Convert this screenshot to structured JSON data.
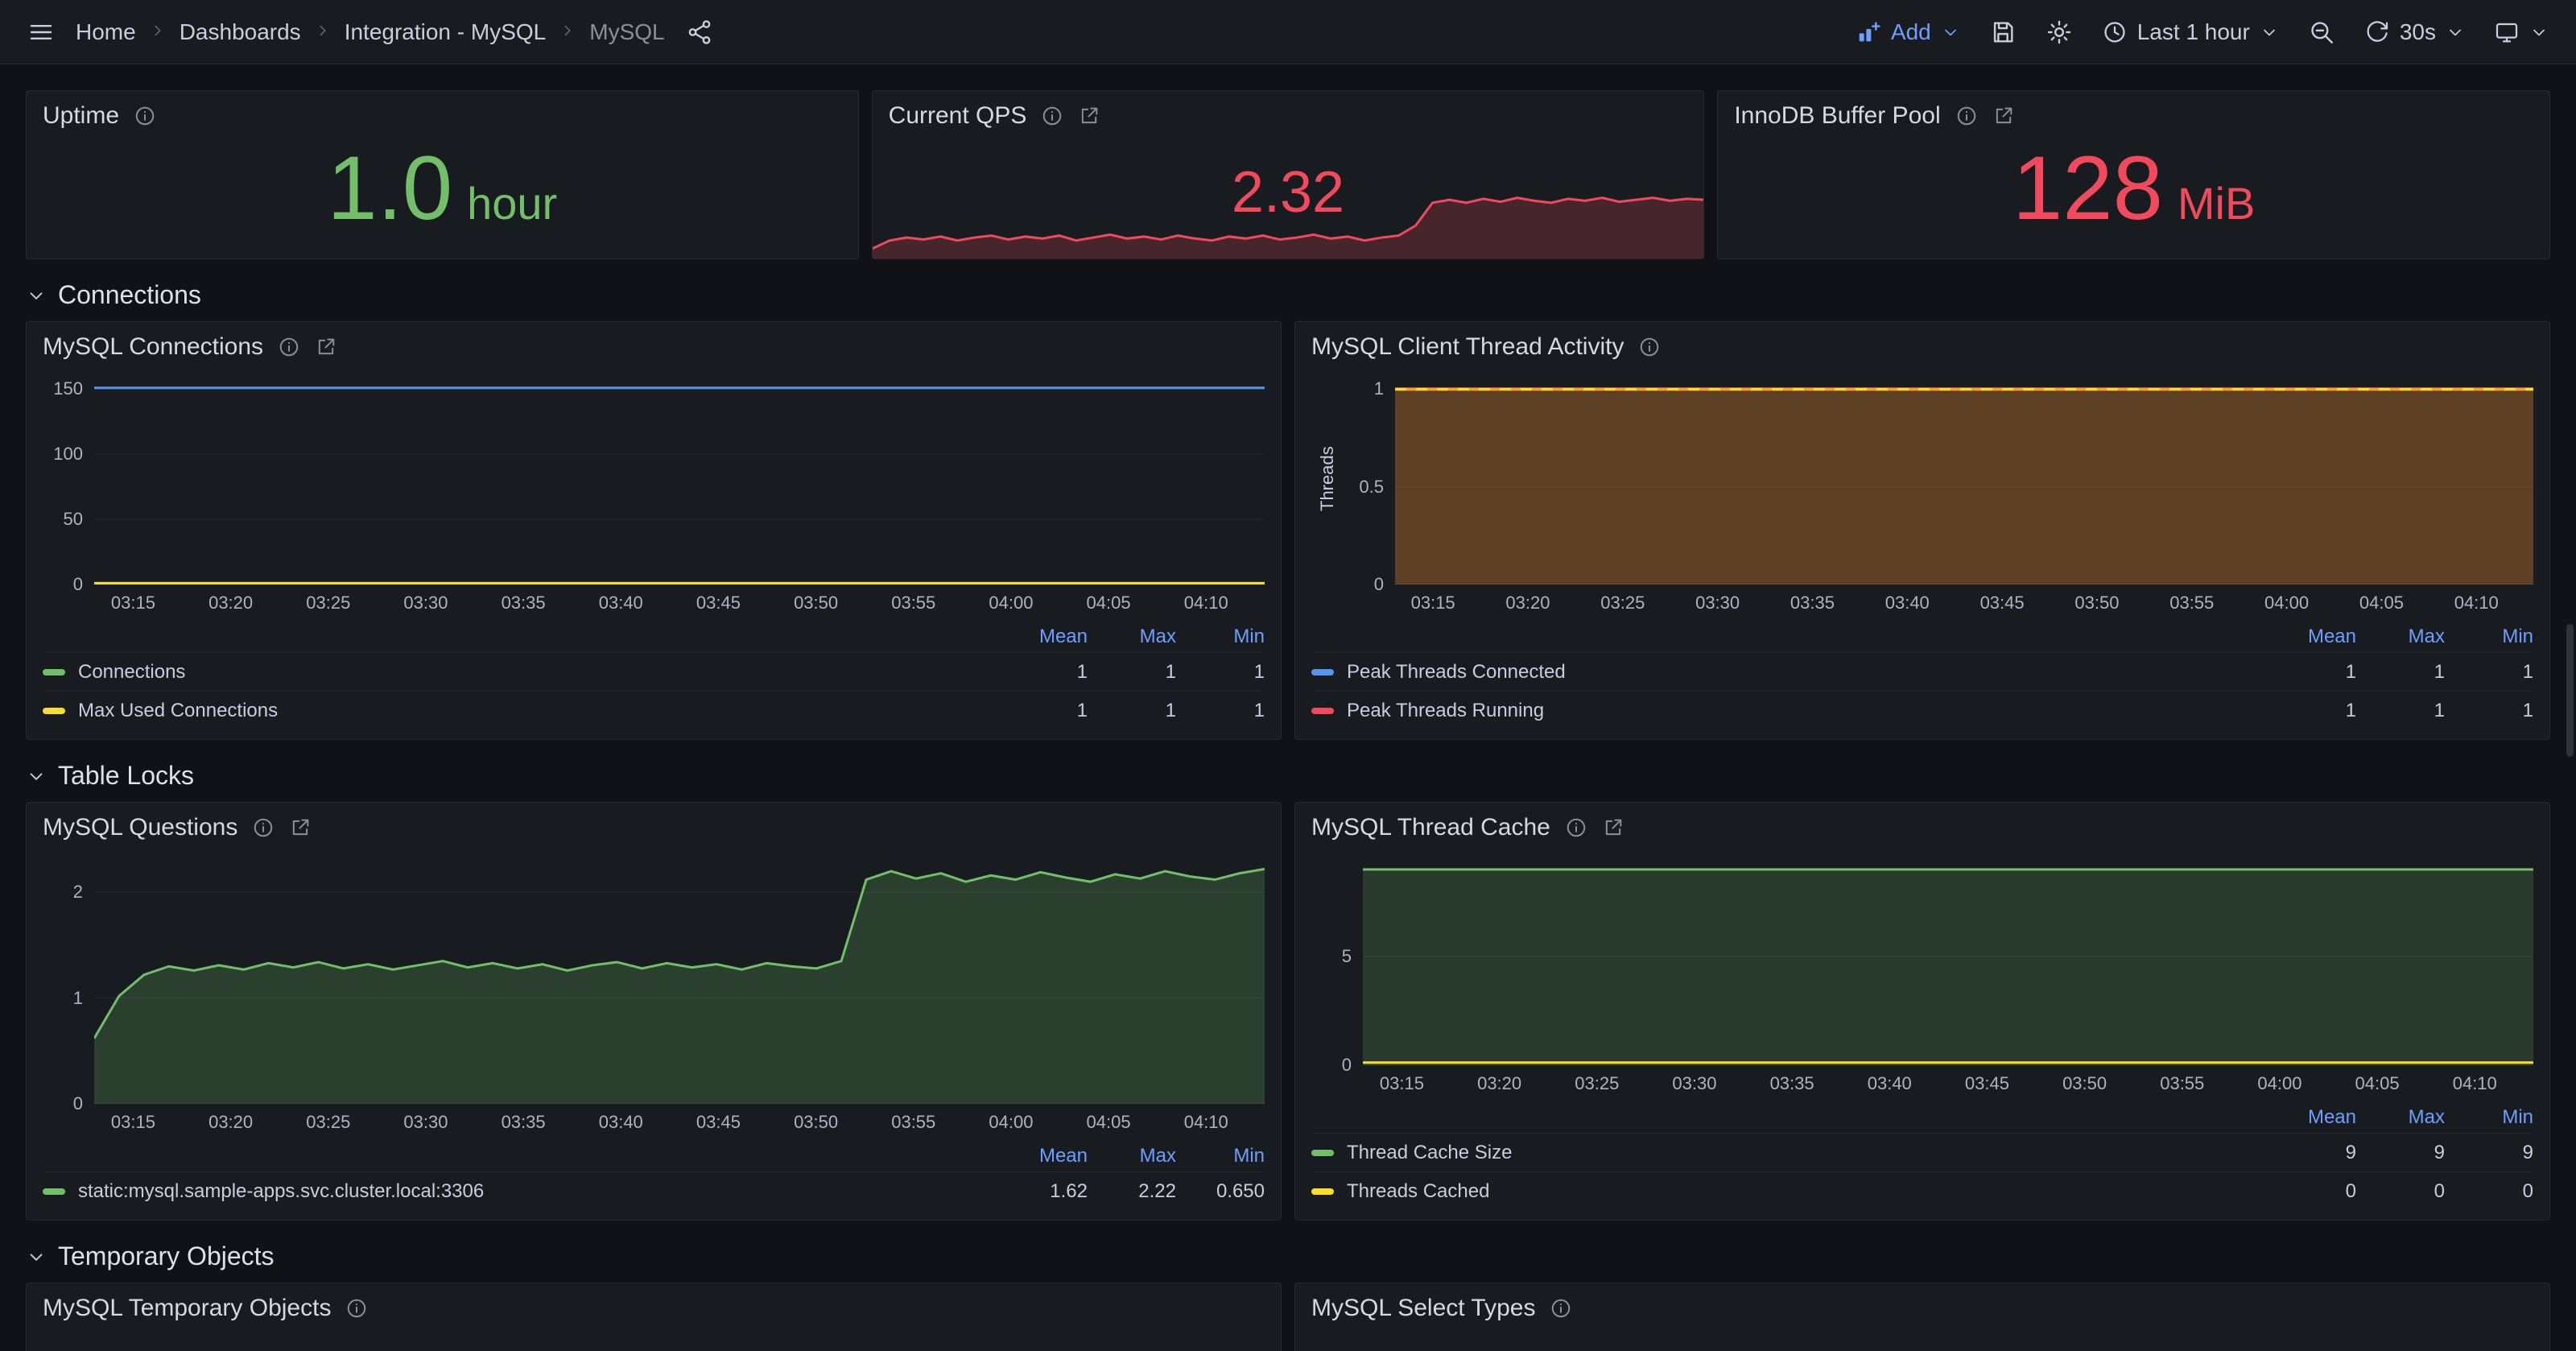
{
  "nav": {
    "breadcrumbs": [
      "Home",
      "Dashboards",
      "Integration - MySQL",
      "MySQL"
    ],
    "add_label": "Add",
    "time_range": "Last 1 hour",
    "refresh": "30s"
  },
  "sections": {
    "connections": "Connections",
    "table_locks": "Table Locks",
    "temporary_objects": "Temporary Objects"
  },
  "stats": {
    "uptime": {
      "title": "Uptime",
      "value": "1.0",
      "unit": "hour",
      "color": "#73bf69"
    },
    "qps": {
      "title": "Current QPS",
      "value": "2.32",
      "color": "#f2495c"
    },
    "innodb": {
      "title": "InnoDB Buffer Pool",
      "value": "128",
      "unit": "MiB",
      "color": "#f2495c"
    }
  },
  "panels": {
    "connections": {
      "title": "MySQL Connections",
      "legend": {
        "headers": [
          "Mean",
          "Max",
          "Min"
        ],
        "rows": [
          {
            "label": "Connections",
            "color": "#73bf69",
            "values": [
              "1",
              "1",
              "1"
            ]
          },
          {
            "label": "Max Used Connections",
            "color": "#fade2a",
            "values": [
              "1",
              "1",
              "1"
            ]
          }
        ]
      }
    },
    "client_threads": {
      "title": "MySQL Client Thread Activity",
      "legend": {
        "headers": [
          "Mean",
          "Max",
          "Min"
        ],
        "rows": [
          {
            "label": "Peak Threads Connected",
            "color": "#5794f2",
            "values": [
              "1",
              "1",
              "1"
            ]
          },
          {
            "label": "Peak Threads Running",
            "color": "#f2495c",
            "values": [
              "1",
              "1",
              "1"
            ]
          }
        ]
      }
    },
    "questions": {
      "title": "MySQL Questions",
      "legend": {
        "headers": [
          "Mean",
          "Max",
          "Min"
        ],
        "rows": [
          {
            "label": "static:mysql.sample-apps.svc.cluster.local:3306",
            "color": "#73bf69",
            "values": [
              "1.62",
              "2.22",
              "0.650"
            ]
          }
        ]
      }
    },
    "thread_cache": {
      "title": "MySQL Thread Cache",
      "legend": {
        "headers": [
          "Mean",
          "Max",
          "Min"
        ],
        "rows": [
          {
            "label": "Thread Cache Size",
            "color": "#73bf69",
            "values": [
              "9",
              "9",
              "9"
            ]
          },
          {
            "label": "Threads Cached",
            "color": "#fade2a",
            "values": [
              "0",
              "0",
              "0"
            ]
          }
        ]
      }
    },
    "temp_objects": {
      "title": "MySQL Temporary Objects"
    },
    "select_types": {
      "title": "MySQL Select Types"
    }
  },
  "chart_data": {
    "qps_sparkline": {
      "type": "area",
      "ylim": [
        1.72,
        2.4
      ],
      "color": "#f2495c",
      "fill_opacity": 0.22,
      "values": [
        1.82,
        1.9,
        1.93,
        1.91,
        1.94,
        1.9,
        1.93,
        1.95,
        1.91,
        1.94,
        1.92,
        1.95,
        1.9,
        1.93,
        1.96,
        1.92,
        1.94,
        1.91,
        1.95,
        1.92,
        1.9,
        1.94,
        1.92,
        1.95,
        1.91,
        1.93,
        1.96,
        1.92,
        1.94,
        1.9,
        1.93,
        1.95,
        2.05,
        2.28,
        2.31,
        2.28,
        2.32,
        2.29,
        2.33,
        2.3,
        2.28,
        2.32,
        2.3,
        2.33,
        2.29,
        2.31,
        2.33,
        2.3,
        2.32,
        2.31
      ]
    },
    "connections": {
      "type": "line",
      "ylim": [
        0,
        162
      ],
      "y_ticks": [
        {
          "value": 0,
          "label": "0"
        },
        {
          "value": 50,
          "label": "50"
        },
        {
          "value": 100,
          "label": "100"
        },
        {
          "value": 150,
          "label": "150"
        }
      ],
      "x_ticks": [
        "03:15",
        "03:20",
        "03:25",
        "03:30",
        "03:35",
        "03:40",
        "03:45",
        "03:50",
        "03:55",
        "04:00",
        "04:05",
        "04:10"
      ],
      "series": [
        {
          "color": "#5794f2",
          "constant": 151,
          "points": 40,
          "width": 3
        },
        {
          "name": "Connections",
          "color": "#73bf69",
          "constant": 1,
          "points": 40,
          "width": 3
        },
        {
          "name": "Max Used Connections",
          "color": "#fade2a",
          "constant": 1,
          "points": 40,
          "width": 3
        }
      ]
    },
    "client_threads": {
      "type": "line",
      "y_label": "Threads",
      "ylim": [
        0,
        1.08
      ],
      "y_ticks": [
        {
          "value": 0,
          "label": "0"
        },
        {
          "value": 0.5,
          "label": "0.5"
        },
        {
          "value": 1,
          "label": "1"
        }
      ],
      "x_ticks": [
        "03:15",
        "03:20",
        "03:25",
        "03:30",
        "03:35",
        "03:40",
        "03:45",
        "03:50",
        "03:55",
        "04:00",
        "04:05",
        "04:10"
      ],
      "series": [
        {
          "color": "#ff9830",
          "constant": 1,
          "points": 40,
          "width": 4,
          "fill_opacity": 0.3
        },
        {
          "color": "#fade2a",
          "constant": 1,
          "points": 40,
          "width": 3,
          "dash": "14 12"
        }
      ]
    },
    "questions": {
      "type": "line",
      "ylim": [
        0,
        2.36
      ],
      "y_ticks": [
        {
          "value": 0,
          "label": "0"
        },
        {
          "value": 1,
          "label": "1"
        },
        {
          "value": 2,
          "label": "2"
        }
      ],
      "x_ticks": [
        "03:15",
        "03:20",
        "03:25",
        "03:30",
        "03:35",
        "03:40",
        "03:45",
        "03:50",
        "03:55",
        "04:00",
        "04:05",
        "04:10"
      ],
      "series": [
        {
          "name": "static:mysql.sample-apps.svc.cluster.local:3306",
          "color": "#73bf69",
          "width": 3,
          "fill_opacity": 0.22,
          "values": [
            0.62,
            1.02,
            1.22,
            1.3,
            1.26,
            1.31,
            1.27,
            1.33,
            1.29,
            1.34,
            1.28,
            1.32,
            1.27,
            1.31,
            1.35,
            1.29,
            1.33,
            1.28,
            1.32,
            1.26,
            1.31,
            1.34,
            1.28,
            1.33,
            1.29,
            1.32,
            1.27,
            1.33,
            1.3,
            1.28,
            1.35,
            2.12,
            2.2,
            2.13,
            2.18,
            2.1,
            2.16,
            2.12,
            2.19,
            2.14,
            2.1,
            2.17,
            2.13,
            2.2,
            2.15,
            2.12,
            2.18,
            2.22
          ]
        }
      ]
    },
    "thread_cache": {
      "type": "line",
      "ylim": [
        0,
        9.7
      ],
      "y_ticks": [
        {
          "value": 0,
          "label": "0"
        },
        {
          "value": 5,
          "label": "5"
        }
      ],
      "x_ticks": [
        "03:15",
        "03:20",
        "03:25",
        "03:30",
        "03:35",
        "03:40",
        "03:45",
        "03:50",
        "03:55",
        "04:00",
        "04:05",
        "04:10"
      ],
      "series": [
        {
          "name": "Thread Cache Size",
          "color": "#73bf69",
          "constant": 9,
          "points": 40,
          "width": 3,
          "fill_opacity": 0.2
        },
        {
          "name": "Threads Cached",
          "color": "#fade2a",
          "constant": 0.12,
          "points": 40,
          "width": 3
        }
      ]
    }
  }
}
